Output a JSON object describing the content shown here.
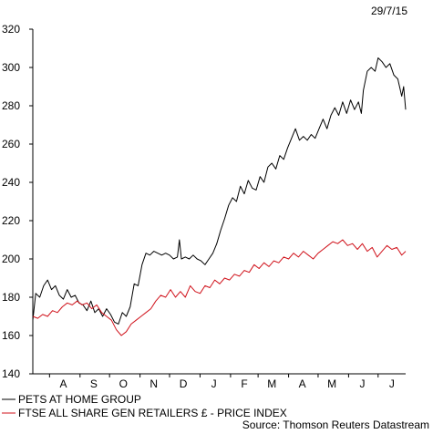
{
  "chart_data": {
    "type": "line",
    "date_label": "29/7/15",
    "source": "Source: Thomson Reuters Datastream",
    "ylim": [
      140,
      320
    ],
    "yticks": [
      140,
      160,
      180,
      200,
      220,
      240,
      260,
      280,
      300,
      320
    ],
    "x_range": [
      "2014-07-15",
      "2015-07-29"
    ],
    "xticks": [
      {
        "label": "A",
        "date": "2014-08-15"
      },
      {
        "label": "S",
        "date": "2014-09-15"
      },
      {
        "label": "O",
        "date": "2014-10-15"
      },
      {
        "label": "N",
        "date": "2014-11-15"
      },
      {
        "label": "D",
        "date": "2014-12-15"
      },
      {
        "label": "J",
        "date": "2015-01-15"
      },
      {
        "label": "F",
        "date": "2015-02-15"
      },
      {
        "label": "M",
        "date": "2015-03-15"
      },
      {
        "label": "A",
        "date": "2015-04-15"
      },
      {
        "label": "M",
        "date": "2015-05-15"
      },
      {
        "label": "J",
        "date": "2015-06-15"
      },
      {
        "label": "J",
        "date": "2015-07-15"
      }
    ],
    "grid": false,
    "legend_position": "bottom-left",
    "series": [
      {
        "name": "PETS AT HOME GROUP",
        "color": "#000000",
        "points": [
          [
            "2014-07-15",
            168
          ],
          [
            "2014-07-18",
            182
          ],
          [
            "2014-07-22",
            180
          ],
          [
            "2014-07-26",
            186
          ],
          [
            "2014-07-30",
            189
          ],
          [
            "2014-08-03",
            184
          ],
          [
            "2014-08-07",
            186
          ],
          [
            "2014-08-11",
            181
          ],
          [
            "2014-08-15",
            179
          ],
          [
            "2014-08-19",
            184
          ],
          [
            "2014-08-23",
            180
          ],
          [
            "2014-08-27",
            181
          ],
          [
            "2014-08-31",
            177
          ],
          [
            "2014-09-04",
            176
          ],
          [
            "2014-09-08",
            173
          ],
          [
            "2014-09-12",
            178
          ],
          [
            "2014-09-16",
            172
          ],
          [
            "2014-09-20",
            174
          ],
          [
            "2014-09-24",
            170
          ],
          [
            "2014-09-28",
            174
          ],
          [
            "2014-10-02",
            171
          ],
          [
            "2014-10-06",
            167
          ],
          [
            "2014-10-10",
            166
          ],
          [
            "2014-10-14",
            172
          ],
          [
            "2014-10-18",
            170
          ],
          [
            "2014-10-22",
            175
          ],
          [
            "2014-10-26",
            187
          ],
          [
            "2014-10-30",
            186
          ],
          [
            "2014-11-03",
            197
          ],
          [
            "2014-11-07",
            203
          ],
          [
            "2014-11-11",
            202
          ],
          [
            "2014-11-15",
            204
          ],
          [
            "2014-11-19",
            203
          ],
          [
            "2014-11-23",
            202
          ],
          [
            "2014-11-27",
            203
          ],
          [
            "2014-12-01",
            202
          ],
          [
            "2014-12-05",
            200
          ],
          [
            "2014-12-09",
            201
          ],
          [
            "2014-12-11",
            210
          ],
          [
            "2014-12-13",
            200
          ],
          [
            "2014-12-17",
            201
          ],
          [
            "2014-12-21",
            200
          ],
          [
            "2014-12-25",
            202
          ],
          [
            "2014-12-29",
            200
          ],
          [
            "2015-01-02",
            199
          ],
          [
            "2015-01-06",
            197
          ],
          [
            "2015-01-10",
            200
          ],
          [
            "2015-01-14",
            203
          ],
          [
            "2015-01-18",
            208
          ],
          [
            "2015-01-22",
            215
          ],
          [
            "2015-01-26",
            221
          ],
          [
            "2015-01-30",
            228
          ],
          [
            "2015-02-03",
            232
          ],
          [
            "2015-02-07",
            230
          ],
          [
            "2015-02-11",
            238
          ],
          [
            "2015-02-15",
            234
          ],
          [
            "2015-02-19",
            241
          ],
          [
            "2015-02-23",
            237
          ],
          [
            "2015-02-27",
            236
          ],
          [
            "2015-03-03",
            243
          ],
          [
            "2015-03-07",
            240
          ],
          [
            "2015-03-11",
            248
          ],
          [
            "2015-03-15",
            250
          ],
          [
            "2015-03-19",
            247
          ],
          [
            "2015-03-23",
            254
          ],
          [
            "2015-03-27",
            252
          ],
          [
            "2015-03-31",
            258
          ],
          [
            "2015-04-04",
            263
          ],
          [
            "2015-04-08",
            268
          ],
          [
            "2015-04-12",
            262
          ],
          [
            "2015-04-16",
            264
          ],
          [
            "2015-04-20",
            262
          ],
          [
            "2015-04-24",
            265
          ],
          [
            "2015-04-28",
            263
          ],
          [
            "2015-05-02",
            268
          ],
          [
            "2015-05-06",
            273
          ],
          [
            "2015-05-10",
            268
          ],
          [
            "2015-05-14",
            275
          ],
          [
            "2015-05-18",
            279
          ],
          [
            "2015-05-22",
            275
          ],
          [
            "2015-05-26",
            282
          ],
          [
            "2015-05-30",
            276
          ],
          [
            "2015-06-03",
            283
          ],
          [
            "2015-06-07",
            278
          ],
          [
            "2015-06-11",
            282
          ],
          [
            "2015-06-14",
            276
          ],
          [
            "2015-06-16",
            288
          ],
          [
            "2015-06-20",
            298
          ],
          [
            "2015-06-24",
            300
          ],
          [
            "2015-06-28",
            298
          ],
          [
            "2015-07-01",
            305
          ],
          [
            "2015-07-05",
            303
          ],
          [
            "2015-07-09",
            300
          ],
          [
            "2015-07-13",
            302
          ],
          [
            "2015-07-17",
            296
          ],
          [
            "2015-07-21",
            294
          ],
          [
            "2015-07-25",
            285
          ],
          [
            "2015-07-27",
            290
          ],
          [
            "2015-07-29",
            278
          ]
        ]
      },
      {
        "name": "FTSE ALL SHARE GEN RETAILERS £ - PRICE INDEX",
        "color": "#d0121b",
        "points": [
          [
            "2014-07-15",
            170
          ],
          [
            "2014-07-20",
            169
          ],
          [
            "2014-07-25",
            171
          ],
          [
            "2014-07-30",
            170
          ],
          [
            "2014-08-04",
            173
          ],
          [
            "2014-08-09",
            172
          ],
          [
            "2014-08-14",
            175
          ],
          [
            "2014-08-19",
            177
          ],
          [
            "2014-08-24",
            176
          ],
          [
            "2014-08-29",
            178
          ],
          [
            "2014-09-03",
            176
          ],
          [
            "2014-09-08",
            177
          ],
          [
            "2014-09-13",
            174
          ],
          [
            "2014-09-18",
            176
          ],
          [
            "2014-09-23",
            172
          ],
          [
            "2014-09-28",
            170
          ],
          [
            "2014-10-03",
            168
          ],
          [
            "2014-10-08",
            163
          ],
          [
            "2014-10-13",
            160
          ],
          [
            "2014-10-18",
            162
          ],
          [
            "2014-10-23",
            166
          ],
          [
            "2014-10-28",
            168
          ],
          [
            "2014-11-02",
            170
          ],
          [
            "2014-11-07",
            172
          ],
          [
            "2014-11-12",
            174
          ],
          [
            "2014-11-17",
            178
          ],
          [
            "2014-11-22",
            181
          ],
          [
            "2014-11-27",
            180
          ],
          [
            "2014-12-02",
            184
          ],
          [
            "2014-12-07",
            180
          ],
          [
            "2014-12-12",
            183
          ],
          [
            "2014-12-17",
            180
          ],
          [
            "2014-12-22",
            186
          ],
          [
            "2014-12-27",
            183
          ],
          [
            "2015-01-01",
            182
          ],
          [
            "2015-01-06",
            186
          ],
          [
            "2015-01-11",
            185
          ],
          [
            "2015-01-16",
            189
          ],
          [
            "2015-01-21",
            187
          ],
          [
            "2015-01-26",
            190
          ],
          [
            "2015-01-31",
            189
          ],
          [
            "2015-02-05",
            192
          ],
          [
            "2015-02-10",
            191
          ],
          [
            "2015-02-15",
            194
          ],
          [
            "2015-02-20",
            193
          ],
          [
            "2015-02-25",
            197
          ],
          [
            "2015-03-02",
            195
          ],
          [
            "2015-03-07",
            198
          ],
          [
            "2015-03-12",
            196
          ],
          [
            "2015-03-17",
            199
          ],
          [
            "2015-03-22",
            198
          ],
          [
            "2015-03-27",
            201
          ],
          [
            "2015-04-01",
            200
          ],
          [
            "2015-04-06",
            203
          ],
          [
            "2015-04-11",
            201
          ],
          [
            "2015-04-16",
            204
          ],
          [
            "2015-04-21",
            202
          ],
          [
            "2015-04-26",
            200
          ],
          [
            "2015-05-01",
            203
          ],
          [
            "2015-05-06",
            205
          ],
          [
            "2015-05-11",
            207
          ],
          [
            "2015-05-16",
            209
          ],
          [
            "2015-05-21",
            208
          ],
          [
            "2015-05-26",
            210
          ],
          [
            "2015-05-31",
            207
          ],
          [
            "2015-06-05",
            208
          ],
          [
            "2015-06-10",
            205
          ],
          [
            "2015-06-15",
            208
          ],
          [
            "2015-06-20",
            204
          ],
          [
            "2015-06-25",
            206
          ],
          [
            "2015-06-30",
            201
          ],
          [
            "2015-07-05",
            204
          ],
          [
            "2015-07-10",
            207
          ],
          [
            "2015-07-15",
            205
          ],
          [
            "2015-07-20",
            206
          ],
          [
            "2015-07-25",
            202
          ],
          [
            "2015-07-29",
            204
          ]
        ]
      }
    ]
  }
}
